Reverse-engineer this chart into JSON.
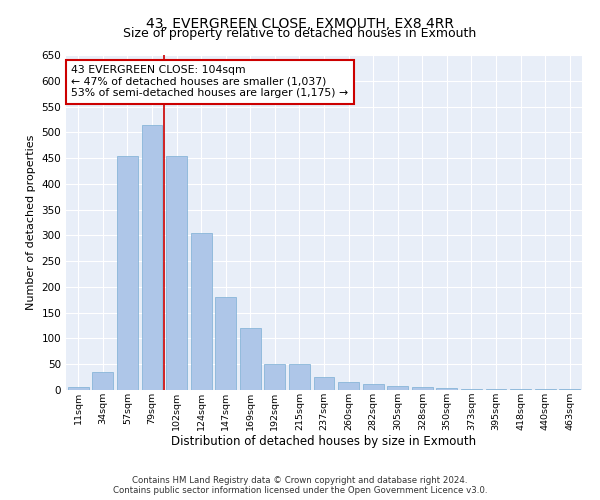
{
  "title": "43, EVERGREEN CLOSE, EXMOUTH, EX8 4RR",
  "subtitle": "Size of property relative to detached houses in Exmouth",
  "xlabel": "Distribution of detached houses by size in Exmouth",
  "ylabel": "Number of detached properties",
  "categories": [
    "11sqm",
    "34sqm",
    "57sqm",
    "79sqm",
    "102sqm",
    "124sqm",
    "147sqm",
    "169sqm",
    "192sqm",
    "215sqm",
    "237sqm",
    "260sqm",
    "282sqm",
    "305sqm",
    "328sqm",
    "350sqm",
    "373sqm",
    "395sqm",
    "418sqm",
    "440sqm",
    "463sqm"
  ],
  "values": [
    5,
    35,
    455,
    515,
    455,
    305,
    180,
    120,
    50,
    50,
    25,
    15,
    12,
    8,
    5,
    4,
    2,
    2,
    2,
    2,
    2
  ],
  "bar_color": "#aec6e8",
  "bar_edge_color": "#7bafd4",
  "annotation_text": "43 EVERGREEN CLOSE: 104sqm\n← 47% of detached houses are smaller (1,037)\n53% of semi-detached houses are larger (1,175) →",
  "annotation_box_color": "#ffffff",
  "annotation_box_edge": "#cc0000",
  "line_color": "#cc0000",
  "ylim": [
    0,
    650
  ],
  "yticks": [
    0,
    50,
    100,
    150,
    200,
    250,
    300,
    350,
    400,
    450,
    500,
    550,
    600,
    650
  ],
  "background_color": "#e8eef8",
  "footer": "Contains HM Land Registry data © Crown copyright and database right 2024.\nContains public sector information licensed under the Open Government Licence v3.0.",
  "title_fontsize": 10,
  "xlabel_fontsize": 8.5,
  "ylabel_fontsize": 8
}
